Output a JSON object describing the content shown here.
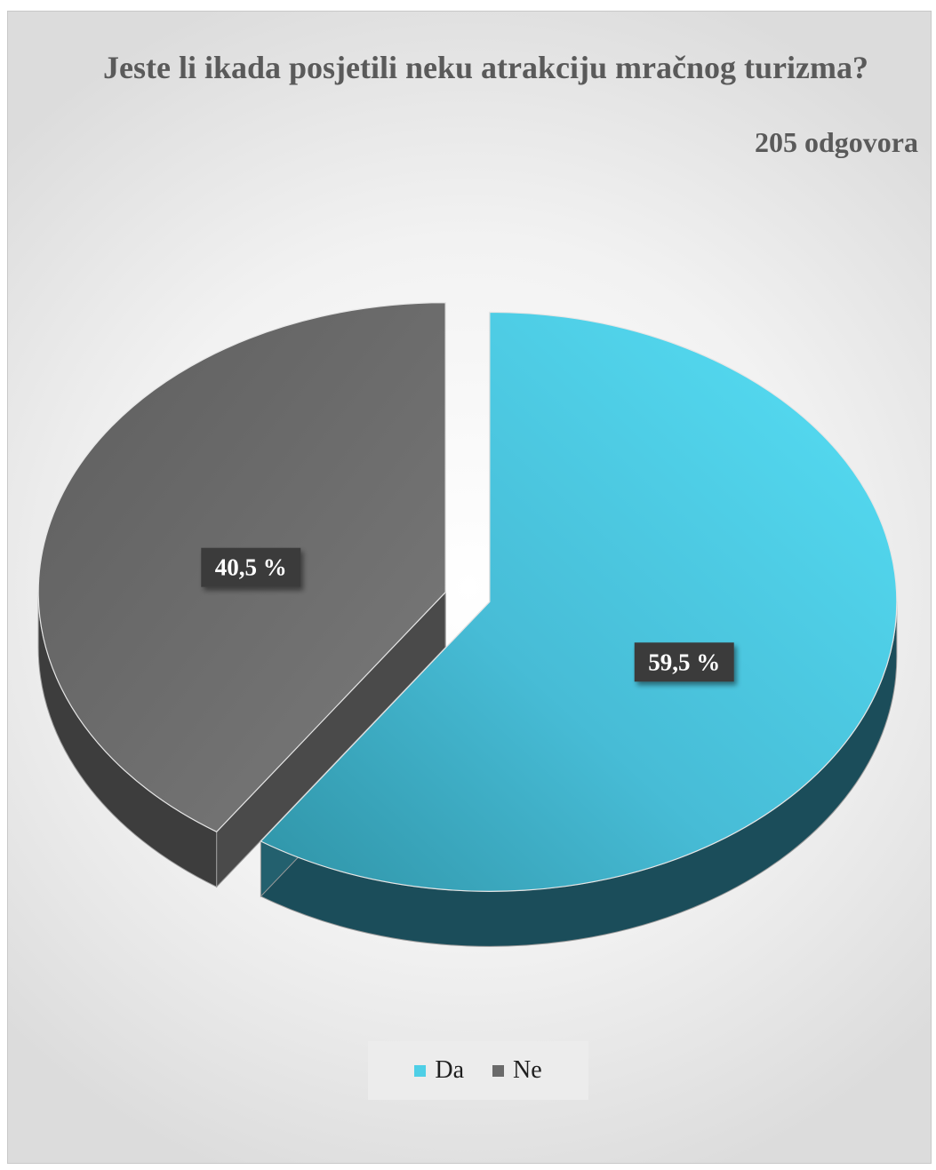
{
  "chart_data": {
    "type": "pie",
    "title": "Jeste li ikada posjetili neku atrakciju mračnog turizma?",
    "subtitle": "205 odgovora",
    "categories": [
      "Da",
      "Ne"
    ],
    "values": [
      59.5,
      40.5
    ],
    "data_labels": [
      "59,5 %",
      "40,5 %"
    ],
    "colors": [
      "#4ecfe6",
      "#6a6a6a"
    ],
    "legend_position": "bottom",
    "style": "3d-exploded"
  }
}
